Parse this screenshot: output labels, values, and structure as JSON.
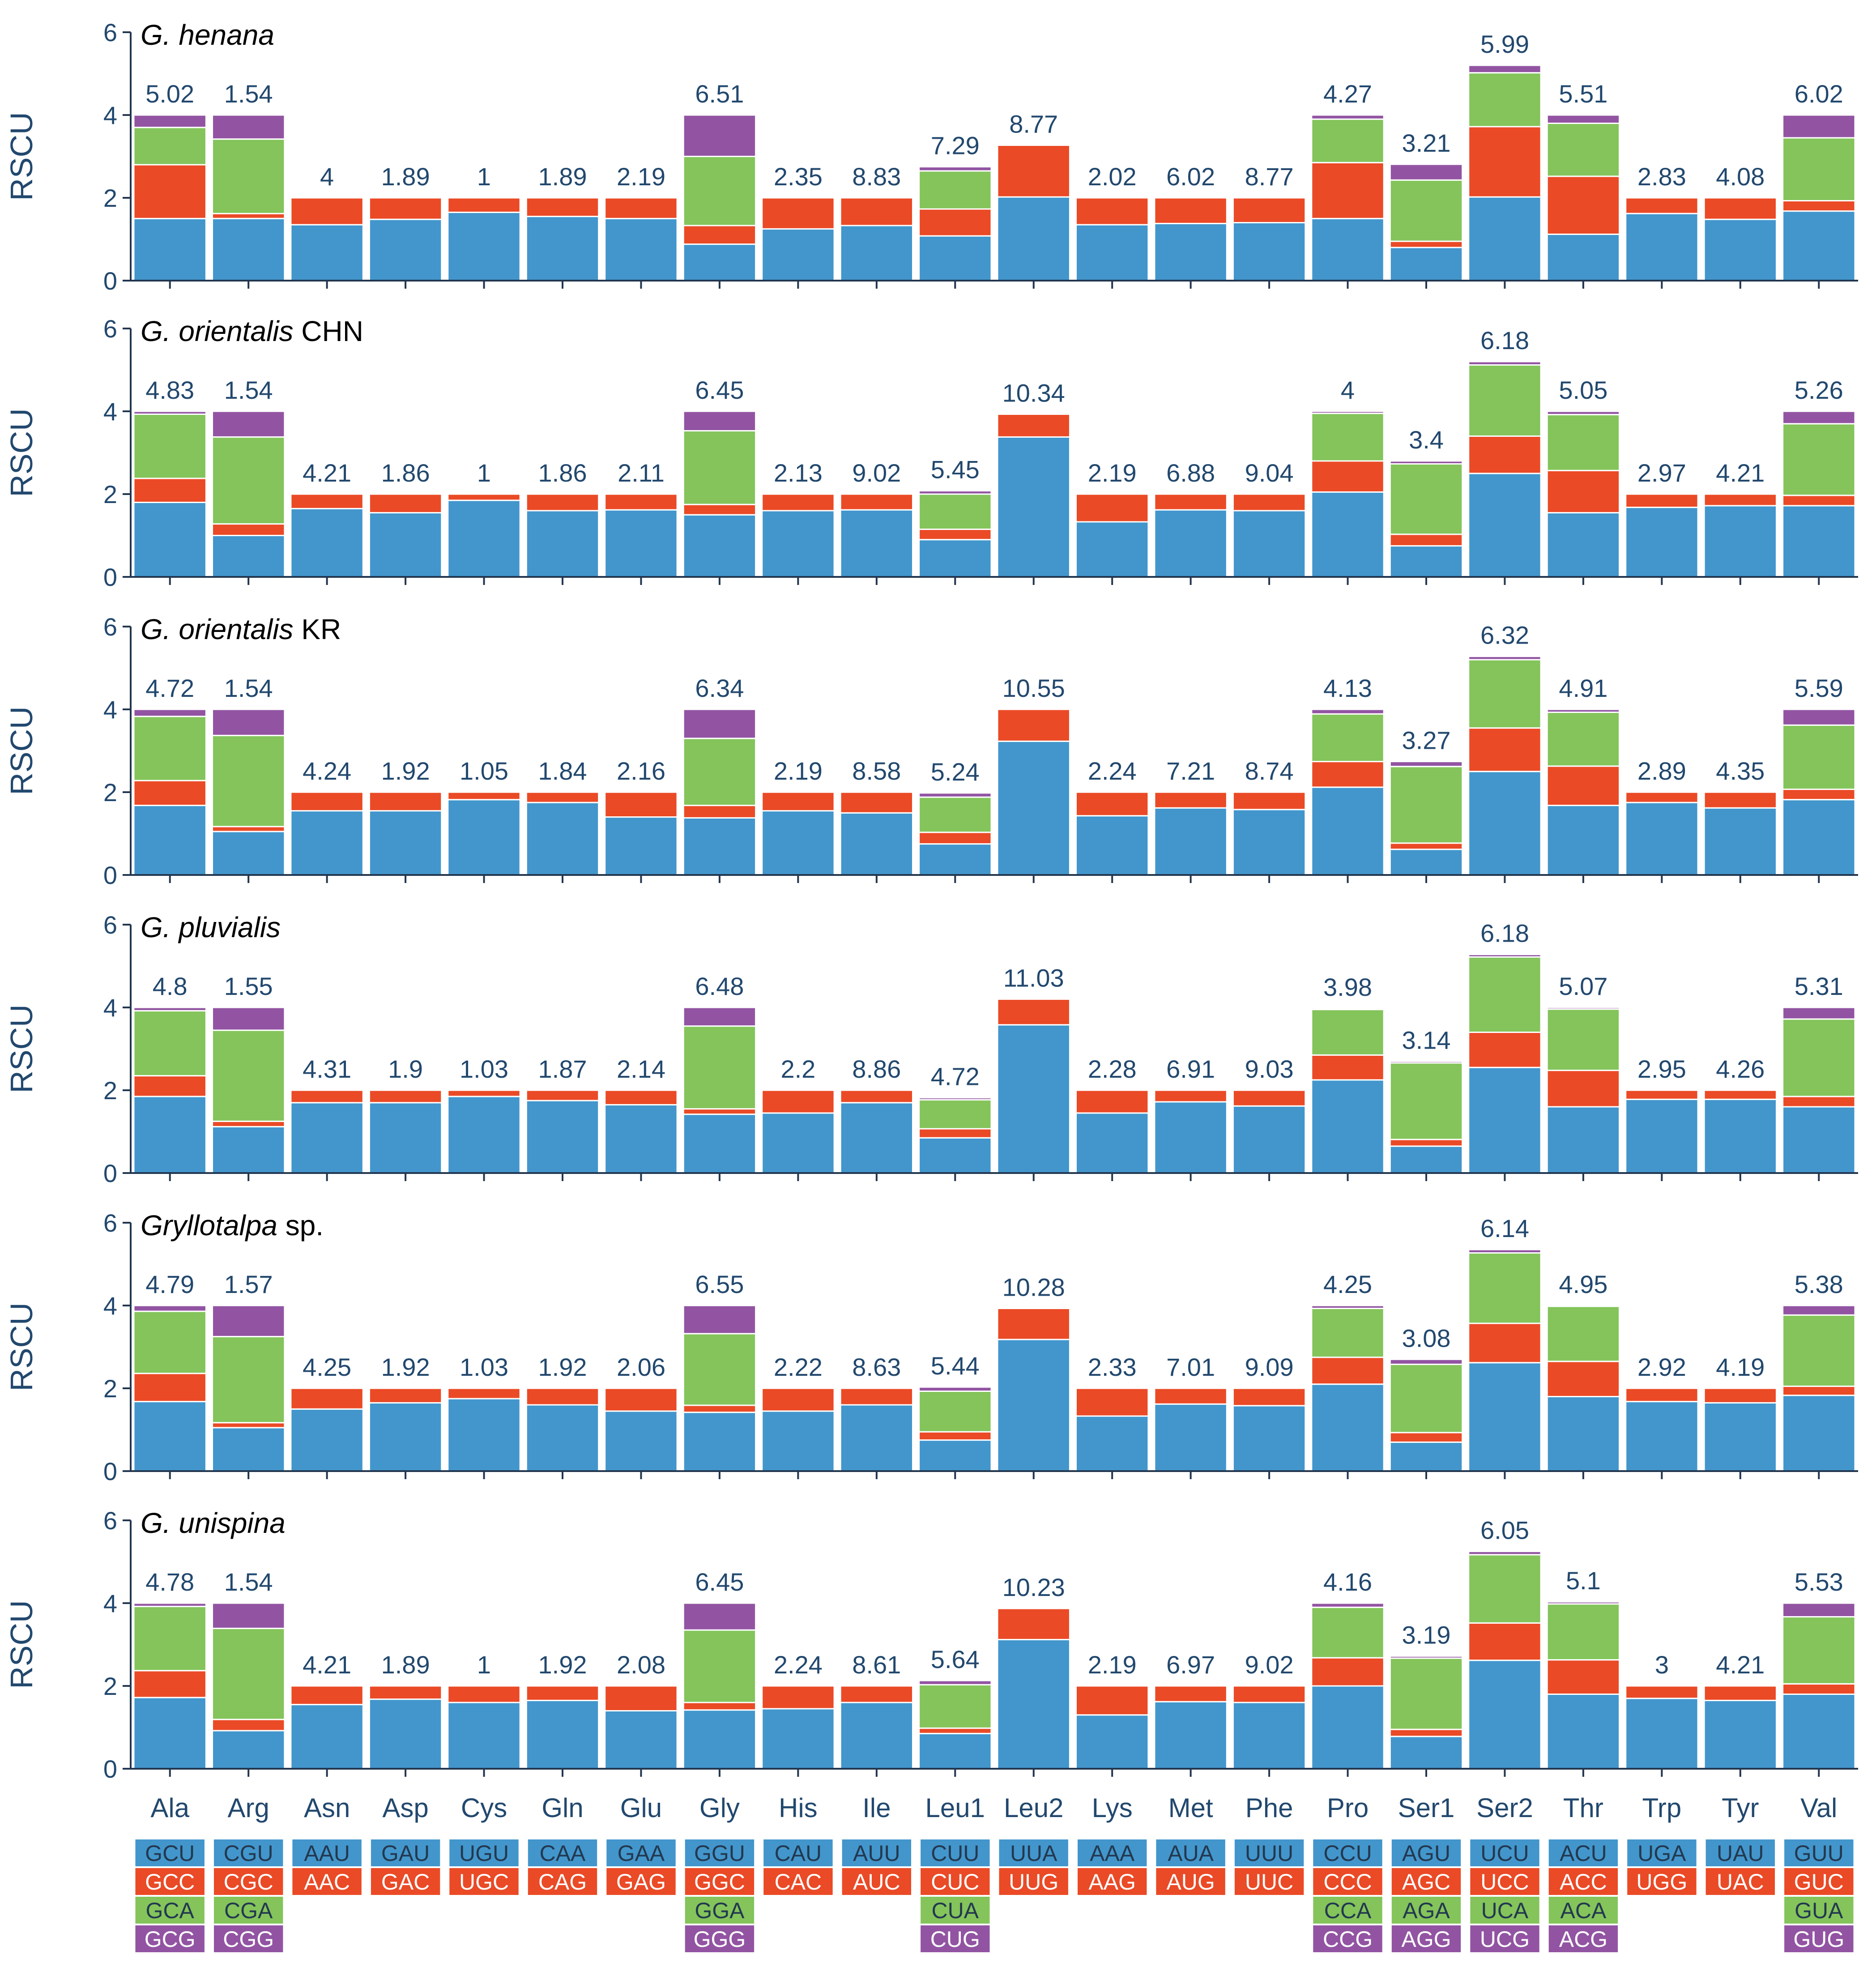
{
  "chart_data": {
    "type": "bar",
    "stacked": true,
    "ylabel": "RSCU",
    "ylim": [
      0,
      6
    ],
    "yticks": [
      0,
      2,
      4,
      6
    ],
    "colors": {
      "c1": "#4296cc",
      "c2": "#ea4a26",
      "c3": "#84c45b",
      "c4": "#9254a2",
      "axis": "#22364f",
      "label": "#22486e"
    },
    "categories": [
      "Ala",
      "Arg",
      "Asn",
      "Asp",
      "Cys",
      "Gln",
      "Glu",
      "Gly",
      "His",
      "Ile",
      "Leu1",
      "Leu2",
      "Lys",
      "Met",
      "Phe",
      "Pro",
      "Ser1",
      "Ser2",
      "Thr",
      "Trp",
      "Tyr",
      "Val"
    ],
    "codons": [
      [
        "GCU",
        "GCC",
        "GCA",
        "GCG"
      ],
      [
        "CGU",
        "CGC",
        "CGA",
        "CGG"
      ],
      [
        "AAU",
        "AAC"
      ],
      [
        "GAU",
        "GAC"
      ],
      [
        "UGU",
        "UGC"
      ],
      [
        "CAA",
        "CAG"
      ],
      [
        "GAA",
        "GAG"
      ],
      [
        "GGU",
        "GGC",
        "GGA",
        "GGG"
      ],
      [
        "CAU",
        "CAC"
      ],
      [
        "AUU",
        "AUC"
      ],
      [
        "CUU",
        "CUC",
        "CUA",
        "CUG"
      ],
      [
        "UUA",
        "UUG"
      ],
      [
        "AAA",
        "AAG"
      ],
      [
        "AUA",
        "AUG"
      ],
      [
        "UUU",
        "UUC"
      ],
      [
        "CCU",
        "CCC",
        "CCA",
        "CCG"
      ],
      [
        "AGU",
        "AGC",
        "AGA",
        "AGG"
      ],
      [
        "UCU",
        "UCC",
        "UCA",
        "UCG"
      ],
      [
        "ACU",
        "ACC",
        "ACA",
        "ACG"
      ],
      [
        "UGA",
        "UGG"
      ],
      [
        "UAU",
        "UAC"
      ],
      [
        "GUU",
        "GUC",
        "GUA",
        "GUG"
      ]
    ],
    "panels": [
      {
        "title_italic": "G. henana",
        "title_rest": "",
        "labels": [
          "5.02",
          "1.54",
          "4",
          "1.89",
          "1",
          "1.89",
          "2.19",
          "6.51",
          "2.35",
          "8.83",
          "7.29",
          "8.77",
          "2.02",
          "6.02",
          "8.77",
          "4.27",
          "3.21",
          "5.99",
          "5.51",
          "2.83",
          "4.08",
          "6.02"
        ],
        "stacks": [
          [
            1.5,
            1.3,
            0.9,
            0.3
          ],
          [
            1.5,
            0.12,
            1.8,
            0.58
          ],
          [
            1.35,
            0.65
          ],
          [
            1.48,
            0.52
          ],
          [
            1.65,
            0.35
          ],
          [
            1.55,
            0.45
          ],
          [
            1.5,
            0.5
          ],
          [
            0.88,
            0.45,
            1.67,
            1.0
          ],
          [
            1.25,
            0.75
          ],
          [
            1.33,
            0.67
          ],
          [
            1.08,
            0.65,
            0.92,
            0.1
          ],
          [
            2.02,
            1.25
          ],
          [
            1.35,
            0.65
          ],
          [
            1.38,
            0.62
          ],
          [
            1.4,
            0.6
          ],
          [
            1.5,
            1.35,
            1.05,
            0.1
          ],
          [
            0.8,
            0.15,
            1.48,
            0.38
          ],
          [
            2.02,
            1.7,
            1.3,
            0.18
          ],
          [
            1.12,
            1.4,
            1.28,
            0.2
          ],
          [
            1.62,
            0.38
          ],
          [
            1.48,
            0.52
          ],
          [
            1.68,
            0.25,
            1.52,
            0.55
          ]
        ]
      },
      {
        "title_italic": "G. orientalis",
        "title_rest": " CHN",
        "labels": [
          "4.83",
          "1.54",
          "4.21",
          "1.86",
          "1",
          "1.86",
          "2.11",
          "6.45",
          "2.13",
          "9.02",
          "5.45",
          "10.34",
          "2.19",
          "6.88",
          "9.04",
          "4",
          "3.4",
          "6.18",
          "5.05",
          "2.97",
          "4.21",
          "5.26"
        ],
        "stacks": [
          [
            1.8,
            0.58,
            1.55,
            0.07
          ],
          [
            1.0,
            0.28,
            2.1,
            0.62
          ],
          [
            1.65,
            0.35
          ],
          [
            1.55,
            0.45
          ],
          [
            1.85,
            0.15
          ],
          [
            1.6,
            0.4
          ],
          [
            1.62,
            0.38
          ],
          [
            1.5,
            0.25,
            1.78,
            0.47
          ],
          [
            1.6,
            0.4
          ],
          [
            1.62,
            0.38
          ],
          [
            0.9,
            0.25,
            0.85,
            0.08
          ],
          [
            3.38,
            0.55
          ],
          [
            1.33,
            0.67
          ],
          [
            1.62,
            0.38
          ],
          [
            1.6,
            0.4
          ],
          [
            2.05,
            0.75,
            1.15,
            0.05
          ],
          [
            0.75,
            0.28,
            1.7,
            0.07
          ],
          [
            2.5,
            0.9,
            1.72,
            0.08
          ],
          [
            1.55,
            1.02,
            1.35,
            0.08
          ],
          [
            1.68,
            0.32
          ],
          [
            1.72,
            0.28
          ],
          [
            1.72,
            0.25,
            1.73,
            0.3
          ]
        ]
      },
      {
        "title_italic": "G. orientalis",
        "title_rest": " KR",
        "labels": [
          "4.72",
          "1.54",
          "4.24",
          "1.92",
          "1.05",
          "1.84",
          "2.16",
          "6.34",
          "2.19",
          "8.58",
          "5.24",
          "10.55",
          "2.24",
          "7.21",
          "8.74",
          "4.13",
          "3.27",
          "6.32",
          "4.91",
          "2.89",
          "4.35",
          "5.59"
        ],
        "stacks": [
          [
            1.68,
            0.6,
            1.55,
            0.17
          ],
          [
            1.05,
            0.12,
            2.2,
            0.63
          ],
          [
            1.55,
            0.45
          ],
          [
            1.55,
            0.45
          ],
          [
            1.82,
            0.18
          ],
          [
            1.75,
            0.25
          ],
          [
            1.4,
            0.6
          ],
          [
            1.38,
            0.3,
            1.62,
            0.7
          ],
          [
            1.55,
            0.45
          ],
          [
            1.5,
            0.5
          ],
          [
            0.75,
            0.28,
            0.85,
            0.1
          ],
          [
            3.23,
            0.77
          ],
          [
            1.43,
            0.57
          ],
          [
            1.62,
            0.38
          ],
          [
            1.58,
            0.42
          ],
          [
            2.12,
            0.62,
            1.15,
            0.11
          ],
          [
            0.62,
            0.15,
            1.85,
            0.12
          ],
          [
            2.5,
            1.05,
            1.65,
            0.08
          ],
          [
            1.68,
            0.95,
            1.3,
            0.07
          ],
          [
            1.75,
            0.25
          ],
          [
            1.62,
            0.38
          ],
          [
            1.82,
            0.25,
            1.55,
            0.38
          ]
        ]
      },
      {
        "title_italic": "G. pluvialis",
        "title_rest": "",
        "labels": [
          "4.8",
          "1.55",
          "4.31",
          "1.9",
          "1.03",
          "1.87",
          "2.14",
          "6.48",
          "2.2",
          "8.86",
          "4.72",
          "11.03",
          "2.28",
          "6.91",
          "9.03",
          "3.98",
          "3.14",
          "6.18",
          "5.07",
          "2.95",
          "4.26",
          "5.31"
        ],
        "stacks": [
          [
            1.85,
            0.5,
            1.57,
            0.08
          ],
          [
            1.12,
            0.13,
            2.2,
            0.55
          ],
          [
            1.7,
            0.3
          ],
          [
            1.7,
            0.3
          ],
          [
            1.85,
            0.15
          ],
          [
            1.75,
            0.25
          ],
          [
            1.65,
            0.35
          ],
          [
            1.42,
            0.13,
            2.0,
            0.45
          ],
          [
            1.45,
            0.55
          ],
          [
            1.7,
            0.3
          ],
          [
            0.85,
            0.22,
            0.7,
            0.05
          ],
          [
            3.58,
            0.62
          ],
          [
            1.45,
            0.55
          ],
          [
            1.72,
            0.28
          ],
          [
            1.62,
            0.38
          ],
          [
            2.25,
            0.6,
            1.1,
            0.03
          ],
          [
            0.65,
            0.16,
            1.85,
            0.04
          ],
          [
            2.55,
            0.85,
            1.82,
            0.06
          ],
          [
            1.6,
            0.88,
            1.48,
            0.04
          ],
          [
            1.78,
            0.22
          ],
          [
            1.78,
            0.22
          ],
          [
            1.6,
            0.25,
            1.87,
            0.28
          ]
        ]
      },
      {
        "title_italic": "Gryllotalpa",
        "title_rest": " sp.",
        "labels": [
          "4.79",
          "1.57",
          "4.25",
          "1.92",
          "1.03",
          "1.92",
          "2.06",
          "6.55",
          "2.22",
          "8.63",
          "5.44",
          "10.28",
          "2.33",
          "7.01",
          "9.09",
          "4.25",
          "3.08",
          "6.14",
          "4.95",
          "2.92",
          "4.19",
          "5.38"
        ],
        "stacks": [
          [
            1.68,
            0.68,
            1.5,
            0.14
          ],
          [
            1.05,
            0.12,
            2.08,
            0.75
          ],
          [
            1.5,
            0.5
          ],
          [
            1.65,
            0.35
          ],
          [
            1.75,
            0.25
          ],
          [
            1.6,
            0.4
          ],
          [
            1.45,
            0.55
          ],
          [
            1.42,
            0.17,
            1.73,
            0.68
          ],
          [
            1.45,
            0.55
          ],
          [
            1.6,
            0.4
          ],
          [
            0.75,
            0.2,
            0.98,
            0.1
          ],
          [
            3.18,
            0.75
          ],
          [
            1.33,
            0.67
          ],
          [
            1.62,
            0.38
          ],
          [
            1.58,
            0.42
          ],
          [
            2.1,
            0.65,
            1.18,
            0.07
          ],
          [
            0.7,
            0.23,
            1.65,
            0.12
          ],
          [
            2.62,
            0.95,
            1.7,
            0.08
          ],
          [
            1.8,
            0.85,
            1.33,
            0.02
          ],
          [
            1.68,
            0.32
          ],
          [
            1.65,
            0.35
          ],
          [
            1.83,
            0.22,
            1.72,
            0.23
          ]
        ]
      },
      {
        "title_italic": "G. unispina",
        "title_rest": "",
        "labels": [
          "4.78",
          "1.54",
          "4.21",
          "1.89",
          "1",
          "1.92",
          "2.08",
          "6.45",
          "2.24",
          "8.61",
          "5.64",
          "10.23",
          "2.19",
          "6.97",
          "9.02",
          "4.16",
          "3.19",
          "6.05",
          "5.1",
          "3",
          "4.21",
          "5.53"
        ],
        "stacks": [
          [
            1.72,
            0.65,
            1.55,
            0.08
          ],
          [
            0.92,
            0.27,
            2.2,
            0.61
          ],
          [
            1.55,
            0.45
          ],
          [
            1.68,
            0.32
          ],
          [
            1.6,
            0.4
          ],
          [
            1.65,
            0.35
          ],
          [
            1.4,
            0.6
          ],
          [
            1.42,
            0.18,
            1.75,
            0.65
          ],
          [
            1.45,
            0.55
          ],
          [
            1.6,
            0.4
          ],
          [
            0.85,
            0.13,
            1.05,
            0.1
          ],
          [
            3.12,
            0.75
          ],
          [
            1.3,
            0.7
          ],
          [
            1.62,
            0.38
          ],
          [
            1.6,
            0.4
          ],
          [
            2.0,
            0.68,
            1.22,
            0.1
          ],
          [
            0.78,
            0.17,
            1.72,
            0.05
          ],
          [
            2.62,
            0.9,
            1.65,
            0.08
          ],
          [
            1.8,
            0.83,
            1.35,
            0.05
          ],
          [
            1.7,
            0.3
          ],
          [
            1.65,
            0.35
          ],
          [
            1.8,
            0.25,
            1.62,
            0.33
          ]
        ]
      }
    ]
  }
}
